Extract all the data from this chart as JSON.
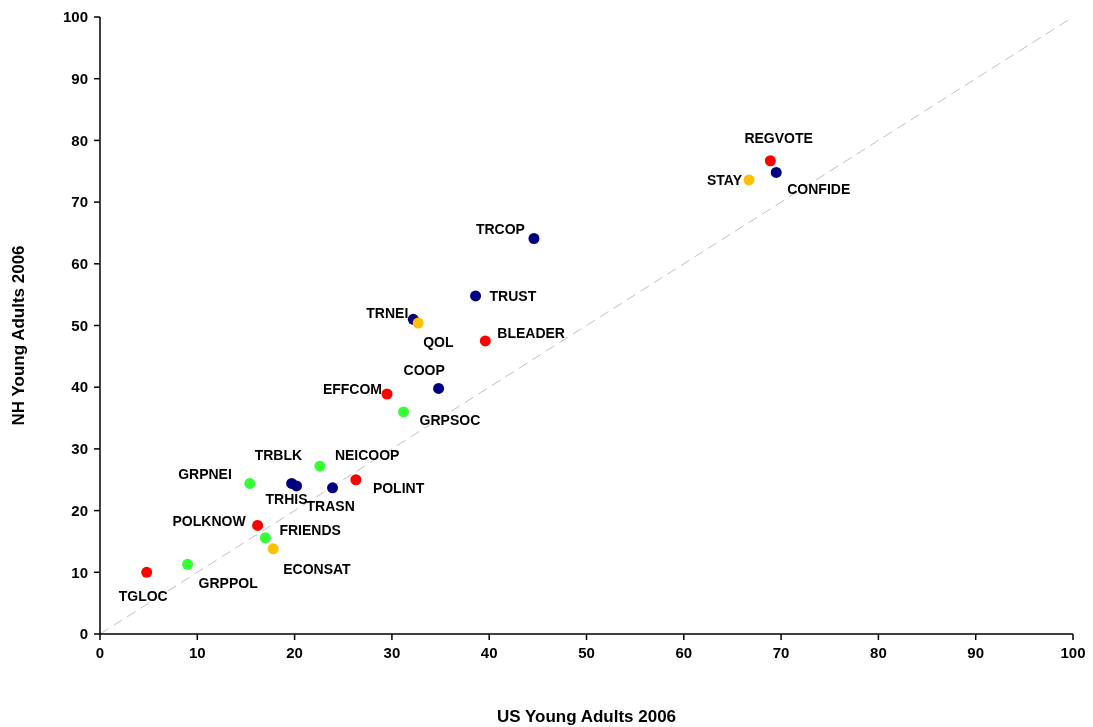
{
  "chart_data": {
    "type": "scatter",
    "xlabel": "US Young Adults 2006",
    "ylabel": "NH Young Adults 2006",
    "xlim": [
      0,
      100
    ],
    "ylim": [
      0,
      100
    ],
    "xticks": [
      0,
      10,
      20,
      30,
      40,
      50,
      60,
      70,
      80,
      90,
      100
    ],
    "yticks": [
      0,
      10,
      20,
      30,
      40,
      50,
      60,
      70,
      80,
      90,
      100
    ],
    "grid": false,
    "marker": "circle",
    "series": [
      {
        "type": "line",
        "color": "#c0c0c0",
        "line_style": "dashed",
        "marker": "none",
        "x": [
          0,
          100
        ],
        "values": [
          0,
          100
        ]
      },
      {
        "color": "#ff0000",
        "x": [
          4.8,
          16.2,
          26.3,
          29.5,
          39.6,
          68.9
        ],
        "values": [
          10.0,
          17.6,
          25.0,
          38.9,
          47.5,
          76.7
        ]
      },
      {
        "color": "#000080",
        "x": [
          19.7,
          20.2,
          23.9,
          34.8,
          32.2,
          38.6,
          44.6,
          69.5
        ],
        "values": [
          24.4,
          24.0,
          23.7,
          39.8,
          51.0,
          54.8,
          64.1,
          74.8
        ]
      },
      {
        "color": "#33ff33",
        "x": [
          9.0,
          17.0,
          15.4,
          22.6,
          31.2
        ],
        "values": [
          11.3,
          15.6,
          24.4,
          27.2,
          36.0
        ]
      },
      {
        "color": "#ffc000",
        "x": [
          17.8,
          32.7,
          66.7
        ],
        "values": [
          13.8,
          50.4,
          73.6
        ]
      }
    ],
    "annotations": [
      {
        "text": "TGLOC",
        "x": 4.8,
        "y": 10.0
      },
      {
        "text": "POLKNOW",
        "x": 16.2,
        "y": 17.6
      },
      {
        "text": "POLINT",
        "x": 26.3,
        "y": 25.0
      },
      {
        "text": "EFFCOM",
        "x": 29.5,
        "y": 38.9
      },
      {
        "text": "BLEADER",
        "x": 39.6,
        "y": 47.5
      },
      {
        "text": "REGVOTE",
        "x": 68.9,
        "y": 76.7
      },
      {
        "text": "TRBLK",
        "x": 19.7,
        "y": 24.4
      },
      {
        "text": "TRHIS",
        "x": 20.2,
        "y": 24.0
      },
      {
        "text": "TRASN",
        "x": 23.9,
        "y": 23.7
      },
      {
        "text": "COOP",
        "x": 34.8,
        "y": 39.8
      },
      {
        "text": "TRNEI",
        "x": 32.2,
        "y": 51.0
      },
      {
        "text": "TRUST",
        "x": 38.6,
        "y": 54.8
      },
      {
        "text": "TRCOP",
        "x": 44.6,
        "y": 64.1
      },
      {
        "text": "CONFIDE",
        "x": 69.5,
        "y": 74.8
      },
      {
        "text": "GRPPOL",
        "x": 9.0,
        "y": 11.3
      },
      {
        "text": "FRIENDS",
        "x": 17.0,
        "y": 15.6
      },
      {
        "text": "GRPNEI",
        "x": 15.4,
        "y": 24.4
      },
      {
        "text": "NEICOOP",
        "x": 22.6,
        "y": 27.2
      },
      {
        "text": "GRPSOC",
        "x": 31.2,
        "y": 36.0
      },
      {
        "text": "ECONSAT",
        "x": 17.8,
        "y": 13.8
      },
      {
        "text": "QOL",
        "x": 32.7,
        "y": 50.4
      },
      {
        "text": "STAY",
        "x": 66.7,
        "y": 73.6
      }
    ]
  }
}
